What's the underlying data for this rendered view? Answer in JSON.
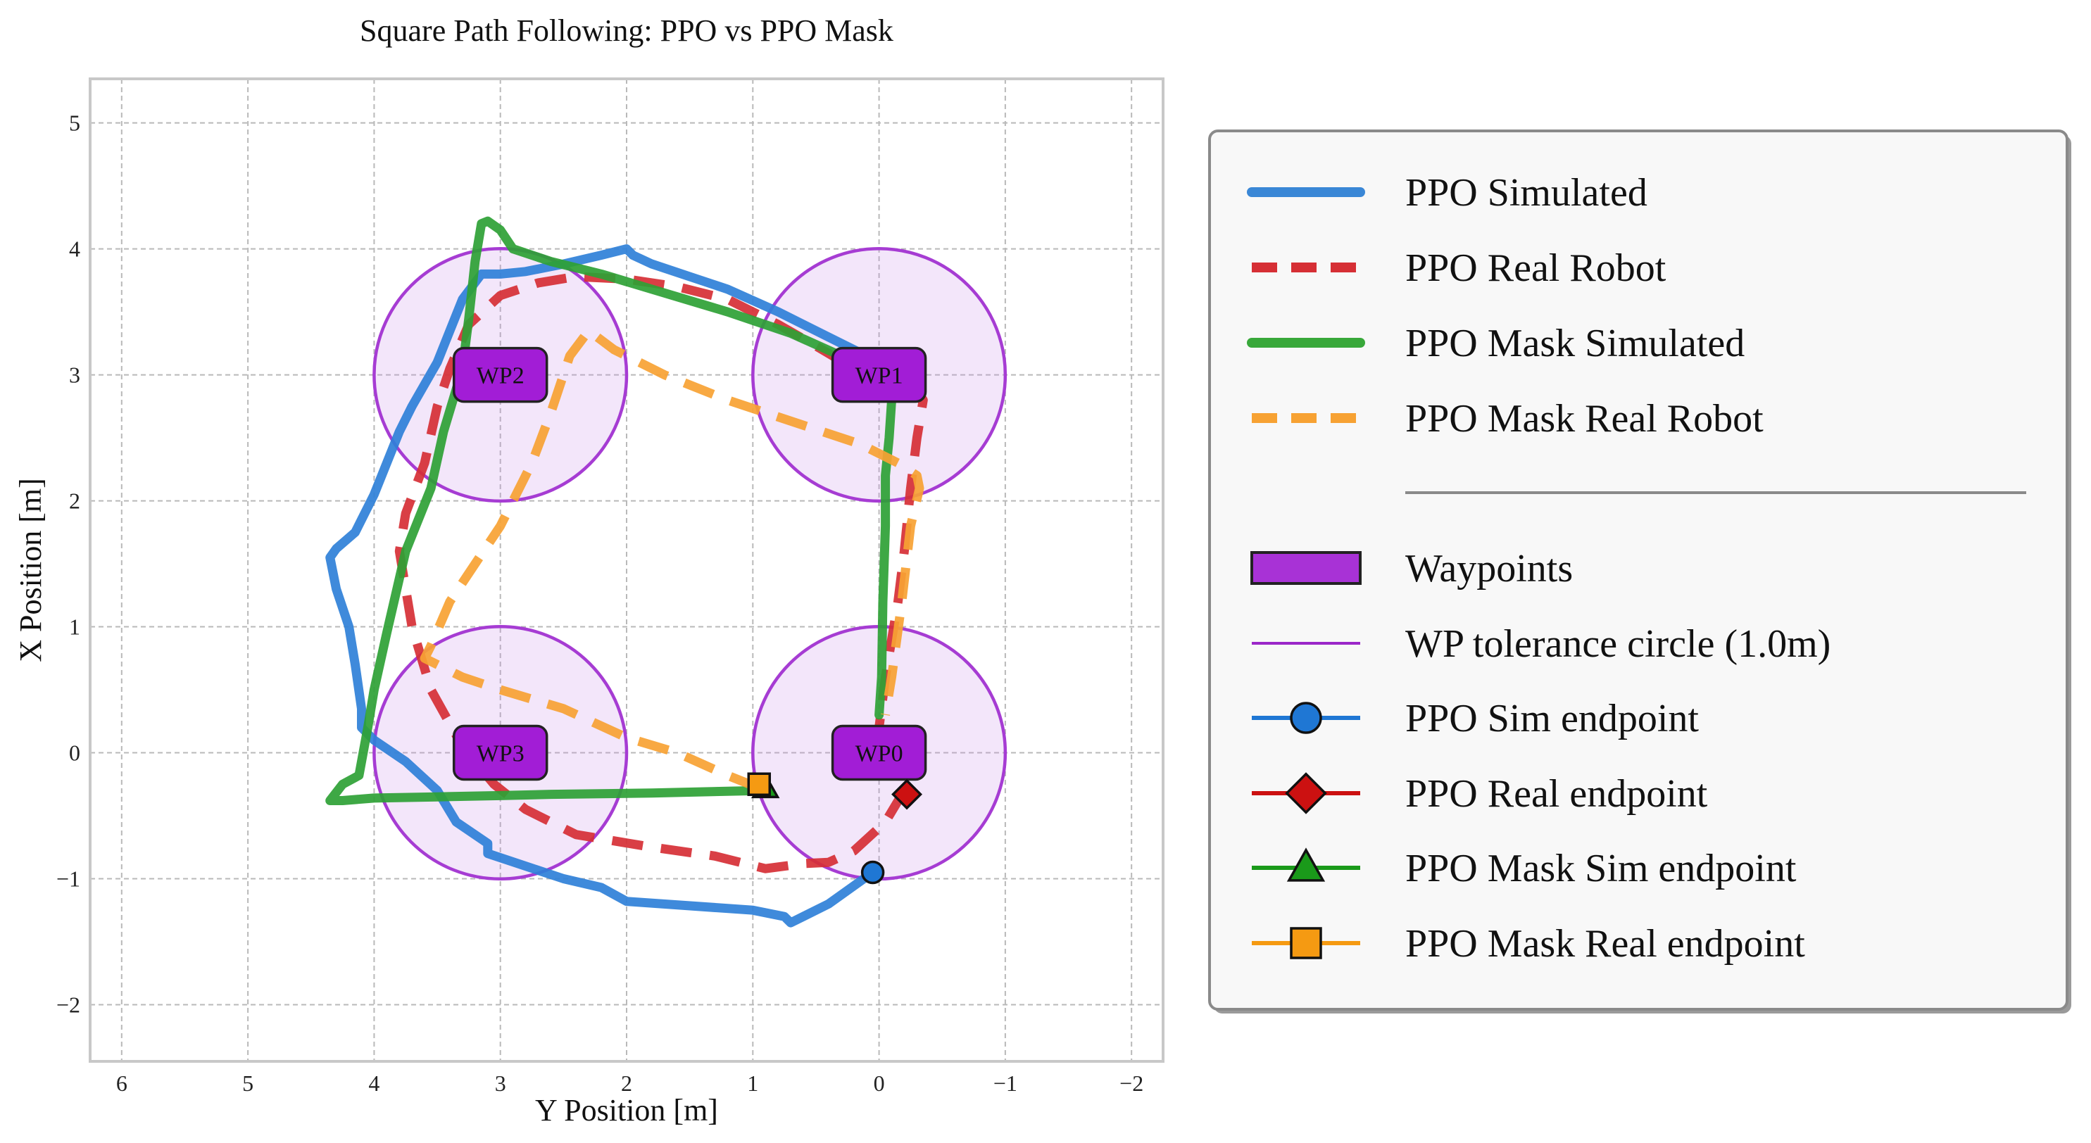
{
  "chart_data": {
    "type": "line",
    "title": "Square Path Following: PPO vs PPO Mask",
    "xlabel": "Y Position [m]",
    "ylabel": "X Position [m]",
    "xlim": [
      6.25,
      -2.25
    ],
    "ylim": [
      -2.45,
      5.35
    ],
    "x_ticks": [
      6,
      5,
      4,
      3,
      2,
      1,
      0,
      -1,
      -2
    ],
    "x_tick_labels": [
      "6",
      "5",
      "4",
      "3",
      "2",
      "1",
      "0",
      "−1",
      "−2"
    ],
    "y_ticks": [
      -2,
      -1,
      0,
      1,
      2,
      3,
      4,
      5
    ],
    "y_tick_labels": [
      "−2",
      "−1",
      "0",
      "1",
      "2",
      "3",
      "4",
      "5"
    ],
    "grid": true,
    "legend_position": "right",
    "waypoints": [
      {
        "label": "WP0",
        "x": 0,
        "y": 0
      },
      {
        "label": "WP1",
        "x": 0,
        "y": 3
      },
      {
        "label": "WP2",
        "x": 3,
        "y": 3
      },
      {
        "label": "WP3",
        "x": 3,
        "y": 0
      }
    ],
    "tolerance_radius": 1.0,
    "series": [
      {
        "name": "PPO Simulated",
        "color": "#2f80d8",
        "dash": "solid",
        "points": [
          [
            0.05,
            -0.95
          ],
          [
            0.4,
            -1.2
          ],
          [
            0.7,
            -1.35
          ],
          [
            0.75,
            -1.3
          ],
          [
            1.0,
            -1.25
          ],
          [
            2.0,
            -1.18
          ],
          [
            2.2,
            -1.07
          ],
          [
            2.5,
            -1.0
          ],
          [
            3.1,
            -0.8
          ],
          [
            3.1,
            -0.72
          ],
          [
            3.35,
            -0.55
          ],
          [
            3.5,
            -0.3
          ],
          [
            3.75,
            -0.07
          ],
          [
            4.0,
            0.1
          ],
          [
            4.1,
            0.2
          ],
          [
            4.1,
            0.35
          ],
          [
            4.15,
            0.7
          ],
          [
            4.2,
            1.0
          ],
          [
            4.3,
            1.3
          ],
          [
            4.35,
            1.55
          ],
          [
            4.3,
            1.62
          ],
          [
            4.15,
            1.75
          ],
          [
            4.0,
            2.05
          ],
          [
            3.8,
            2.55
          ],
          [
            3.7,
            2.75
          ],
          [
            3.5,
            3.1
          ],
          [
            3.4,
            3.35
          ],
          [
            3.3,
            3.6
          ],
          [
            3.15,
            3.8
          ],
          [
            3.0,
            3.8
          ],
          [
            2.8,
            3.82
          ],
          [
            2.5,
            3.88
          ],
          [
            2.2,
            3.95
          ],
          [
            2.0,
            4.0
          ],
          [
            1.95,
            3.95
          ],
          [
            1.8,
            3.88
          ],
          [
            1.5,
            3.78
          ],
          [
            1.2,
            3.68
          ],
          [
            0.8,
            3.5
          ],
          [
            0.4,
            3.3
          ],
          [
            0.1,
            3.15
          ],
          [
            -0.1,
            3.05
          ],
          [
            -0.25,
            2.95
          ],
          [
            -0.3,
            2.88
          ]
        ]
      },
      {
        "name": "PPO Real Robot",
        "color": "#d62f35",
        "dash": "dashed",
        "points": [
          [
            -0.2,
            -0.3
          ],
          [
            -0.05,
            -0.55
          ],
          [
            0.2,
            -0.78
          ],
          [
            0.4,
            -0.87
          ],
          [
            0.6,
            -0.88
          ],
          [
            0.9,
            -0.92
          ],
          [
            1.3,
            -0.82
          ],
          [
            1.8,
            -0.75
          ],
          [
            2.4,
            -0.65
          ],
          [
            2.8,
            -0.45
          ],
          [
            3.05,
            -0.25
          ],
          [
            3.3,
            0.05
          ],
          [
            3.55,
            0.5
          ],
          [
            3.7,
            1.0
          ],
          [
            3.8,
            1.6
          ],
          [
            3.75,
            1.9
          ],
          [
            3.6,
            2.3
          ],
          [
            3.5,
            2.75
          ],
          [
            3.4,
            3.05
          ],
          [
            3.25,
            3.4
          ],
          [
            3.0,
            3.63
          ],
          [
            2.7,
            3.73
          ],
          [
            2.4,
            3.78
          ],
          [
            2.0,
            3.76
          ],
          [
            1.6,
            3.7
          ],
          [
            1.2,
            3.6
          ],
          [
            0.8,
            3.4
          ],
          [
            0.45,
            3.2
          ],
          [
            0.2,
            3.05
          ],
          [
            -0.05,
            2.93
          ],
          [
            -0.3,
            2.88
          ],
          [
            -0.35,
            2.8
          ],
          [
            -0.3,
            2.5
          ],
          [
            -0.25,
            2.1
          ],
          [
            -0.2,
            1.6
          ],
          [
            -0.15,
            1.2
          ],
          [
            -0.05,
            0.6
          ],
          [
            0,
            0.2
          ],
          [
            0.02,
            0.02
          ]
        ]
      },
      {
        "name": "PPO Mask Simulated",
        "color": "#2ea135",
        "dash": "solid",
        "points": [
          [
            0.95,
            -0.3
          ],
          [
            1.8,
            -0.32
          ],
          [
            2.6,
            -0.33
          ],
          [
            3.0,
            -0.34
          ],
          [
            3.5,
            -0.35
          ],
          [
            4.0,
            -0.36
          ],
          [
            4.25,
            -0.38
          ],
          [
            4.35,
            -0.38
          ],
          [
            4.25,
            -0.25
          ],
          [
            4.12,
            -0.18
          ],
          [
            4.05,
            0.2
          ],
          [
            4.0,
            0.5
          ],
          [
            3.9,
            0.95
          ],
          [
            3.75,
            1.6
          ],
          [
            3.55,
            2.1
          ],
          [
            3.45,
            2.55
          ],
          [
            3.3,
            3.05
          ],
          [
            3.25,
            3.45
          ],
          [
            3.2,
            3.9
          ],
          [
            3.15,
            4.2
          ],
          [
            3.1,
            4.22
          ],
          [
            3.0,
            4.15
          ],
          [
            2.9,
            4.0
          ],
          [
            2.6,
            3.9
          ],
          [
            2.2,
            3.8
          ],
          [
            1.7,
            3.65
          ],
          [
            1.2,
            3.5
          ],
          [
            0.7,
            3.33
          ],
          [
            0.3,
            3.15
          ],
          [
            -0.05,
            3.0
          ],
          [
            -0.1,
            2.8
          ],
          [
            -0.08,
            2.5
          ],
          [
            -0.05,
            2.2
          ],
          [
            -0.05,
            1.8
          ],
          [
            -0.03,
            1.2
          ],
          [
            -0.02,
            0.6
          ],
          [
            0,
            0.3
          ]
        ]
      },
      {
        "name": "PPO Mask Real Robot",
        "color": "#f7a233",
        "dash": "dashed",
        "points": [
          [
            0.95,
            -0.28
          ],
          [
            1.2,
            -0.18
          ],
          [
            1.6,
            0.0
          ],
          [
            2.0,
            0.12
          ],
          [
            2.5,
            0.35
          ],
          [
            3.0,
            0.5
          ],
          [
            3.3,
            0.6
          ],
          [
            3.6,
            0.75
          ],
          [
            3.55,
            0.85
          ],
          [
            3.4,
            1.2
          ],
          [
            3.0,
            1.8
          ],
          [
            2.75,
            2.3
          ],
          [
            2.6,
            2.7
          ],
          [
            2.45,
            3.15
          ],
          [
            2.3,
            3.35
          ],
          [
            2.1,
            3.2
          ],
          [
            1.7,
            3.0
          ],
          [
            1.2,
            2.8
          ],
          [
            0.6,
            2.6
          ],
          [
            0.15,
            2.45
          ],
          [
            -0.15,
            2.3
          ],
          [
            -0.3,
            2.2
          ],
          [
            -0.32,
            2.1
          ],
          [
            -0.25,
            1.8
          ],
          [
            -0.18,
            1.2
          ],
          [
            -0.1,
            0.6
          ],
          [
            -0.05,
            0.3
          ]
        ]
      }
    ],
    "endpoints": [
      {
        "name": "PPO Sim endpoint",
        "color": "#1f77d4",
        "marker": "circle",
        "x": 0.05,
        "y": -0.95
      },
      {
        "name": "PPO Real endpoint",
        "color": "#cc1111",
        "marker": "diamond",
        "x": -0.22,
        "y": -0.33
      },
      {
        "name": "PPO Mask Sim endpoint",
        "color": "#1a9a1a",
        "marker": "triangle",
        "x": 0.9,
        "y": -0.28
      },
      {
        "name": "PPO Mask Real endpoint",
        "color": "#f59a12",
        "marker": "square",
        "x": 0.95,
        "y": -0.25
      }
    ],
    "legend": {
      "entries": [
        {
          "label": "PPO Simulated",
          "kind": "line",
          "color": "#3a87d6",
          "dash": "solid"
        },
        {
          "label": "PPO Real Robot",
          "kind": "line",
          "color": "#d62f35",
          "dash": "dashed"
        },
        {
          "label": "PPO Mask Simulated",
          "kind": "line",
          "color": "#38a83a",
          "dash": "solid"
        },
        {
          "label": "PPO Mask Real Robot",
          "kind": "line",
          "color": "#f7a233",
          "dash": "dashed"
        },
        {
          "kind": "separator"
        },
        {
          "label": "Waypoints",
          "kind": "patch",
          "color": "#a832d6"
        },
        {
          "label": "WP tolerance circle (1.0m)",
          "kind": "thinline",
          "color": "#9b27c9"
        },
        {
          "label": "PPO Sim endpoint",
          "kind": "marker",
          "marker": "circle",
          "color": "#1f77d4"
        },
        {
          "label": "PPO Real endpoint",
          "kind": "marker",
          "marker": "diamond",
          "color": "#cc1111"
        },
        {
          "label": "PPO Mask Sim endpoint",
          "kind": "marker",
          "marker": "triangle",
          "color": "#1a9a1a"
        },
        {
          "label": "PPO Mask Real endpoint",
          "kind": "marker",
          "marker": "square",
          "color": "#f59a12"
        }
      ]
    }
  }
}
